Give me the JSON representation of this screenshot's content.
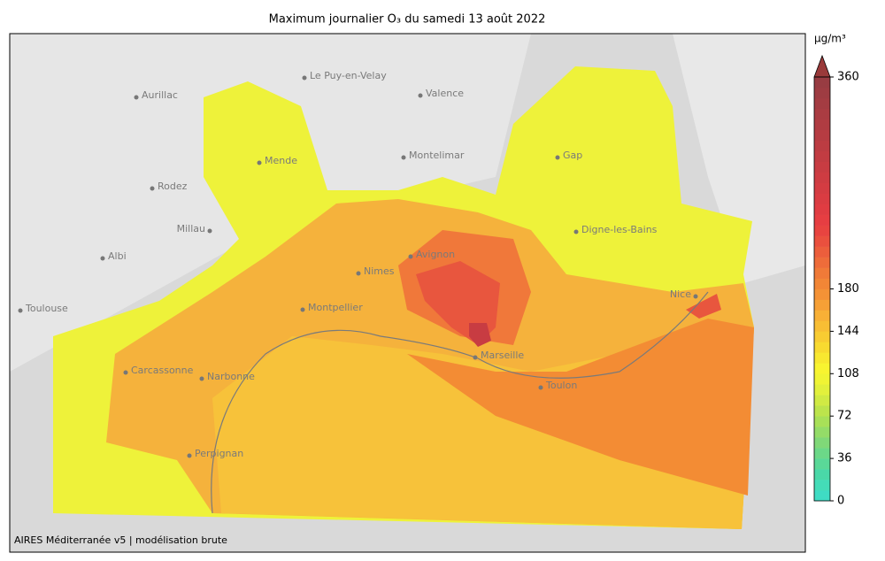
{
  "title": "Maximum journalier O₃ du samedi 13 août 2022",
  "credit": "AIRES Méditerranée v5 | modélisation brute",
  "cities": [
    "Aurillac",
    "Le Puy-en-Velay",
    "Valence",
    "Mende",
    "Rodez",
    "Montelimar",
    "Gap",
    "Millau",
    "Albi",
    "Digne-les-Bains",
    "Avignon",
    "Nimes",
    "Toulouse",
    "Montpellier",
    "Nice",
    "Carcassonne",
    "Narbonne",
    "Marseille",
    "Toulon",
    "Perpignan"
  ],
  "colorbar": {
    "unit": "µg/m³",
    "vlim": [
      0,
      360
    ],
    "ticks": [
      0,
      36,
      72,
      108,
      144,
      180,
      360
    ],
    "extend_color": "#9a3a3a",
    "colors": [
      "#3fdcc4",
      "#44dcb8",
      "#4ad8a8",
      "#5ad898",
      "#6cd888",
      "#80d878",
      "#94dc68",
      "#a8e058",
      "#bce44c",
      "#d0ea44",
      "#e2f03c",
      "#f0f434",
      "#f8f430",
      "#f8e830",
      "#f8da30",
      "#f8cc32",
      "#f8be34",
      "#f8b036",
      "#f6a036",
      "#f49236",
      "#f28636",
      "#f07a38",
      "#ee6c3a",
      "#ec5e3c",
      "#ea503e",
      "#e84440",
      "#e63e42",
      "#e03c42",
      "#da3c42",
      "#d43c42",
      "#ce3c42",
      "#c83c42",
      "#c23c42",
      "#bc3c42",
      "#b63c42",
      "#b03c42",
      "#aa3c42",
      "#a43c42",
      "#9e3c42",
      "#983c42"
    ]
  }
}
